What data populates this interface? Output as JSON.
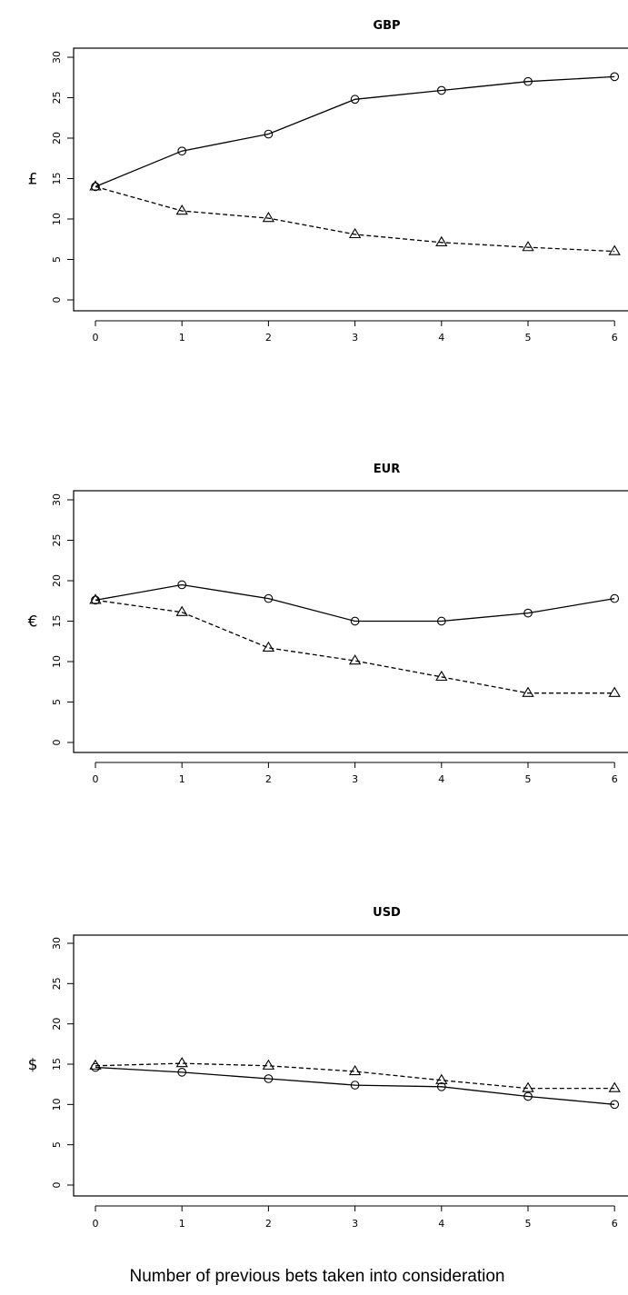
{
  "chart_data": [
    {
      "type": "line",
      "title": "GBP",
      "ylabel": "£",
      "xlabel": "",
      "x": [
        0,
        1,
        2,
        3,
        4,
        5,
        6
      ],
      "ylim": [
        0,
        30
      ],
      "yticks": [
        0,
        5,
        10,
        15,
        20,
        25,
        30
      ],
      "series": [
        {
          "marker": "circle",
          "line": "solid",
          "values": [
            14.0,
            18.4,
            20.5,
            24.8,
            25.9,
            27.0,
            27.6
          ]
        },
        {
          "marker": "triangle",
          "line": "dashed",
          "values": [
            14.0,
            11.0,
            10.1,
            8.1,
            7.1,
            6.5,
            6.0
          ]
        }
      ]
    },
    {
      "type": "line",
      "title": "EUR",
      "ylabel": "€",
      "xlabel": "",
      "x": [
        0,
        1,
        2,
        3,
        4,
        5,
        6
      ],
      "ylim": [
        0,
        30
      ],
      "yticks": [
        0,
        5,
        10,
        15,
        20,
        25,
        30
      ],
      "series": [
        {
          "marker": "circle",
          "line": "solid",
          "values": [
            17.6,
            19.5,
            17.8,
            15.0,
            15.0,
            16.0,
            17.8
          ]
        },
        {
          "marker": "triangle",
          "line": "dashed",
          "values": [
            17.6,
            16.1,
            11.7,
            10.1,
            8.1,
            6.1,
            6.1
          ]
        }
      ]
    },
    {
      "type": "line",
      "title": "USD",
      "ylabel": "$",
      "xlabel": "Number of previous bets taken into consideration",
      "x": [
        0,
        1,
        2,
        3,
        4,
        5,
        6
      ],
      "ylim": [
        0,
        30
      ],
      "yticks": [
        0,
        5,
        10,
        15,
        20,
        25,
        30
      ],
      "series": [
        {
          "marker": "circle",
          "line": "solid",
          "values": [
            14.6,
            14.0,
            13.2,
            12.4,
            12.2,
            11.0,
            10.0
          ]
        },
        {
          "marker": "triangle",
          "line": "dashed",
          "values": [
            14.8,
            15.1,
            14.8,
            14.1,
            13.0,
            12.0,
            12.0
          ]
        }
      ]
    }
  ]
}
